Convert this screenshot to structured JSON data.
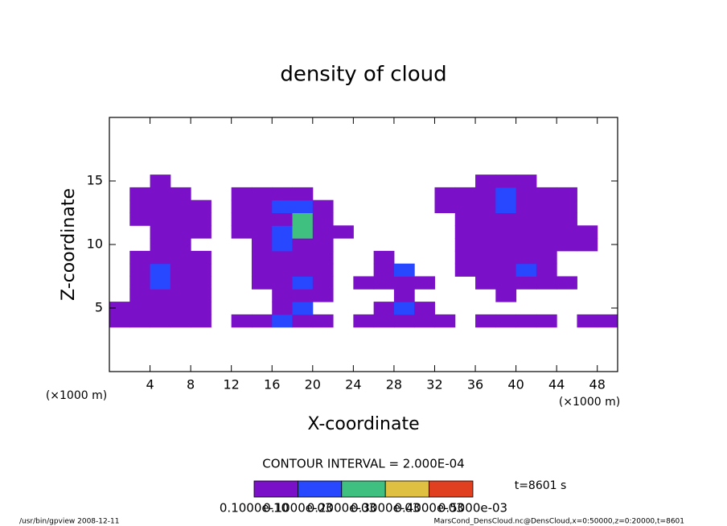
{
  "chart_data": {
    "type": "contour",
    "title": "density of cloud",
    "x_label": "X-coordinate",
    "y_label": "Z-coordinate",
    "x_unit": "(×1000 m)",
    "y_unit": "(×1000 m)",
    "xlim": [
      0,
      50
    ],
    "ylim": [
      0,
      20
    ],
    "xticks": [
      4,
      8,
      12,
      16,
      20,
      24,
      28,
      32,
      36,
      40,
      44,
      48
    ],
    "yticks": [
      5,
      10,
      15
    ],
    "x": [
      1,
      3,
      5,
      7,
      9,
      11,
      13,
      15,
      17,
      19,
      21,
      23,
      25,
      27,
      29,
      31,
      33,
      35,
      37,
      39,
      41,
      43,
      45,
      47,
      49
    ],
    "z": [
      4,
      5,
      6,
      7,
      8,
      9,
      10,
      11,
      12,
      13,
      14,
      15
    ],
    "values": [
      [
        5e-05,
        5e-05,
        5e-05,
        5e-05,
        5e-05,
        null,
        5e-05,
        5e-05,
        0.00015,
        5e-05,
        5e-05,
        null,
        5e-05,
        5e-05,
        5e-05,
        5e-05,
        5e-05,
        null,
        5e-05,
        5e-05,
        5e-05,
        5e-05,
        null,
        5e-05,
        5e-05
      ],
      [
        5e-05,
        5e-05,
        5e-05,
        5e-05,
        5e-05,
        null,
        null,
        null,
        5e-05,
        0.00015,
        null,
        null,
        null,
        5e-05,
        0.00015,
        5e-05,
        null,
        null,
        null,
        null,
        null,
        null,
        null,
        null,
        null
      ],
      [
        null,
        5e-05,
        5e-05,
        5e-05,
        5e-05,
        null,
        null,
        null,
        5e-05,
        5e-05,
        5e-05,
        null,
        null,
        null,
        5e-05,
        null,
        null,
        null,
        null,
        5e-05,
        null,
        null,
        null,
        null,
        null
      ],
      [
        null,
        5e-05,
        0.00015,
        5e-05,
        5e-05,
        null,
        null,
        5e-05,
        5e-05,
        0.00015,
        5e-05,
        null,
        5e-05,
        5e-05,
        5e-05,
        5e-05,
        null,
        null,
        5e-05,
        5e-05,
        5e-05,
        5e-05,
        5e-05,
        null,
        null
      ],
      [
        null,
        5e-05,
        0.00015,
        5e-05,
        5e-05,
        null,
        null,
        5e-05,
        5e-05,
        5e-05,
        5e-05,
        null,
        null,
        5e-05,
        0.00015,
        null,
        null,
        5e-05,
        5e-05,
        5e-05,
        0.00015,
        5e-05,
        null,
        null,
        null
      ],
      [
        null,
        5e-05,
        5e-05,
        5e-05,
        5e-05,
        null,
        null,
        5e-05,
        5e-05,
        5e-05,
        5e-05,
        null,
        null,
        5e-05,
        null,
        null,
        null,
        5e-05,
        5e-05,
        5e-05,
        5e-05,
        5e-05,
        null,
        null,
        null
      ],
      [
        null,
        null,
        5e-05,
        5e-05,
        null,
        null,
        null,
        5e-05,
        0.00015,
        5e-05,
        5e-05,
        null,
        null,
        null,
        null,
        null,
        null,
        5e-05,
        5e-05,
        5e-05,
        5e-05,
        5e-05,
        5e-05,
        5e-05,
        null
      ],
      [
        null,
        null,
        5e-05,
        5e-05,
        5e-05,
        null,
        5e-05,
        5e-05,
        0.00015,
        0.00025,
        5e-05,
        5e-05,
        null,
        null,
        null,
        null,
        null,
        5e-05,
        5e-05,
        5e-05,
        5e-05,
        5e-05,
        5e-05,
        5e-05,
        null
      ],
      [
        null,
        5e-05,
        5e-05,
        5e-05,
        5e-05,
        null,
        5e-05,
        5e-05,
        5e-05,
        0.00025,
        5e-05,
        null,
        null,
        null,
        null,
        null,
        null,
        5e-05,
        5e-05,
        5e-05,
        5e-05,
        5e-05,
        5e-05,
        null,
        null
      ],
      [
        null,
        5e-05,
        5e-05,
        5e-05,
        5e-05,
        null,
        5e-05,
        5e-05,
        0.00015,
        0.00015,
        5e-05,
        null,
        null,
        null,
        null,
        null,
        5e-05,
        5e-05,
        5e-05,
        0.00015,
        5e-05,
        5e-05,
        5e-05,
        null,
        null
      ],
      [
        null,
        5e-05,
        5e-05,
        5e-05,
        null,
        null,
        5e-05,
        5e-05,
        5e-05,
        5e-05,
        null,
        null,
        null,
        null,
        null,
        null,
        5e-05,
        5e-05,
        5e-05,
        0.00015,
        5e-05,
        5e-05,
        5e-05,
        null,
        null
      ],
      [
        null,
        null,
        5e-05,
        null,
        null,
        null,
        null,
        null,
        null,
        null,
        null,
        null,
        null,
        null,
        null,
        null,
        null,
        null,
        5e-05,
        5e-05,
        5e-05,
        null,
        null,
        null,
        null
      ]
    ],
    "levels": [
      {
        "value": 1e-11,
        "label": "0.1000e-10"
      },
      {
        "value": 0.0001,
        "label": "0.1000e-03"
      },
      {
        "value": 0.0002,
        "label": "0.2000e-03"
      },
      {
        "value": 0.0003,
        "label": "0.3000e-03"
      },
      {
        "value": 0.0004,
        "label": "0.4000e-03"
      },
      {
        "value": 0.0005,
        "label": "0.5000e-03"
      }
    ],
    "colors": [
      "#7a10c8",
      "#2848ff",
      "#40c080",
      "#e0c040",
      "#e04020"
    ],
    "contour_interval": "CONTOUR INTERVAL = 2.000E-04",
    "time_label": "t=8601 s",
    "footer_left": "/usr/bin/gpview   2008-12-11",
    "footer_right": "MarsCond_DensCloud.nc@DensCloud,x=0:50000,z=0:20000,t=8601"
  }
}
